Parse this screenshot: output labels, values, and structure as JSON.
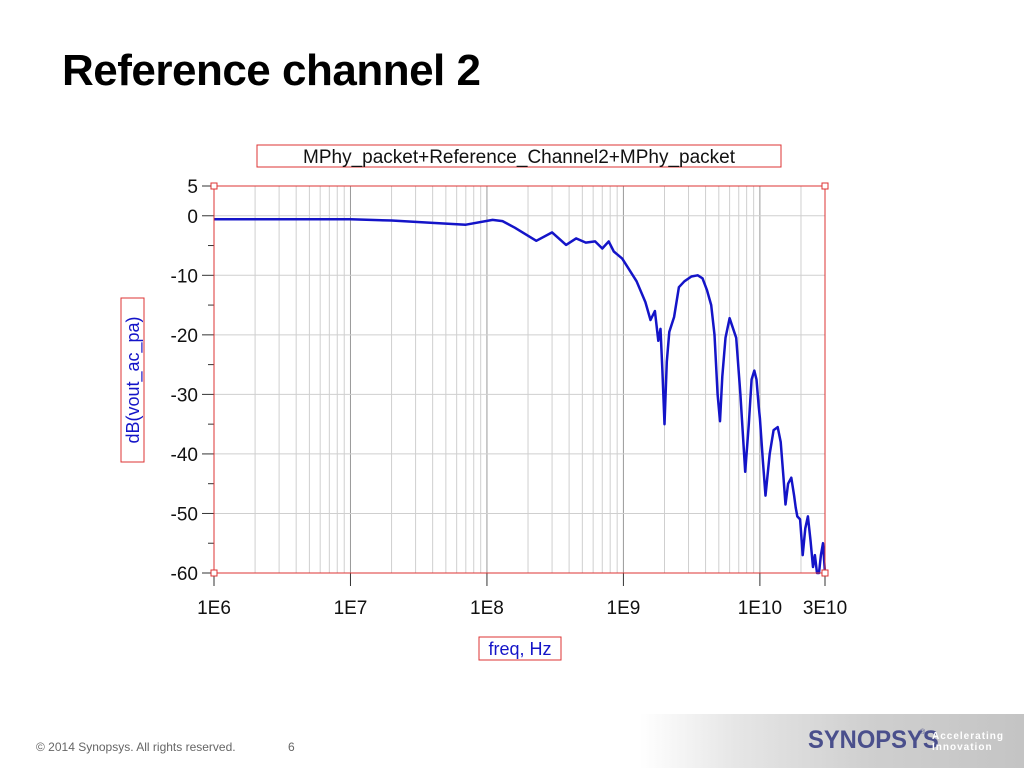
{
  "slide": {
    "title": "Reference channel 2"
  },
  "footer": {
    "copyright": "© 2014 Synopsys. All rights reserved.",
    "page_number": "6",
    "logo": {
      "brand": "SYNOPSYS",
      "registered": "®",
      "tagline_1": "Accelerating",
      "tagline_2": "Innovation",
      "brand_color": "#4a4f8c"
    }
  },
  "chart_data": {
    "type": "line",
    "title": "MPhy_packet+Reference_Channel2+MPhy_packet",
    "xlabel": "freq, Hz",
    "ylabel": "dB(vout_ac_pa)",
    "x_scale": "log",
    "xlim": [
      1000000,
      30000000000
    ],
    "ylim": [
      -60,
      5
    ],
    "x_ticks": [
      {
        "value": 1000000,
        "label": "1E6"
      },
      {
        "value": 10000000,
        "label": "1E7"
      },
      {
        "value": 100000000,
        "label": "1E8"
      },
      {
        "value": 1000000000,
        "label": "1E9"
      },
      {
        "value": 10000000000,
        "label": "1E10"
      },
      {
        "value": 30000000000,
        "label": "3E10"
      }
    ],
    "y_ticks": [
      {
        "value": 5,
        "label": "5"
      },
      {
        "value": 0,
        "label": "0"
      },
      {
        "value": -10,
        "label": "-10"
      },
      {
        "value": -20,
        "label": "-20"
      },
      {
        "value": -30,
        "label": "-30"
      },
      {
        "value": -40,
        "label": "-40"
      },
      {
        "value": -50,
        "label": "-50"
      },
      {
        "value": -60,
        "label": "-60"
      }
    ],
    "grid": true,
    "line_color": "#1414c8",
    "series": [
      {
        "x": [
          1000000,
          3000000,
          10000000,
          20000000,
          40000000,
          70000000,
          110000000,
          130000000,
          160000000,
          230000000,
          300000000,
          380000000,
          450000000,
          530000000,
          620000000,
          700000000,
          780000000,
          850000000,
          980000000,
          1100000000,
          1250000000,
          1450000000,
          1580000000,
          1700000000,
          1800000000,
          1870000000,
          1930000000,
          2000000000,
          2080000000,
          2170000000,
          2350000000,
          2550000000,
          2800000000,
          3150000000,
          3500000000,
          3800000000,
          4100000000,
          4400000000,
          4650000000,
          4900000000,
          5100000000,
          5300000000,
          5600000000,
          6000000000,
          6700000000,
          7200000000,
          7800000000,
          8300000000,
          8700000000,
          9100000000,
          9450000000,
          9800000000,
          10000000000,
          10500000000,
          11000000000,
          11800000000,
          12600000000,
          13500000000,
          14200000000,
          14900000000,
          15400000000,
          16100000000,
          17000000000,
          17800000000,
          18300000000,
          18800000000,
          19700000000,
          20600000000,
          21500000000,
          22500000000,
          23500000000,
          24500000000,
          25300000000,
          26200000000,
          27100000000,
          28000000000,
          29000000000,
          30000000000
        ],
        "y": [
          -0.6,
          -0.6,
          -0.6,
          -0.8,
          -1.2,
          -1.5,
          -0.7,
          -0.9,
          -2,
          -4.2,
          -2.8,
          -4.9,
          -3.8,
          -4.5,
          -4.3,
          -5.5,
          -4.3,
          -6,
          -7.2,
          -9,
          -11,
          -14.5,
          -17.5,
          -16,
          -21,
          -19,
          -26,
          -35,
          -24.5,
          -19.5,
          -17,
          -12,
          -11,
          -10.2,
          -10,
          -10.5,
          -12.5,
          -15,
          -20,
          -30,
          -34.5,
          -27,
          -20.5,
          -17.2,
          -20.5,
          -30,
          -43,
          -35,
          -27.5,
          -26,
          -27.5,
          -32,
          -34,
          -41,
          -47,
          -40,
          -36,
          -35.5,
          -38,
          -44,
          -48.5,
          -45,
          -44,
          -47,
          -49,
          -50.5,
          -51,
          -57,
          -52.5,
          -50.5,
          -54.5,
          -59,
          -57,
          -60,
          -60,
          -57,
          -55,
          -60
        ]
      }
    ]
  }
}
